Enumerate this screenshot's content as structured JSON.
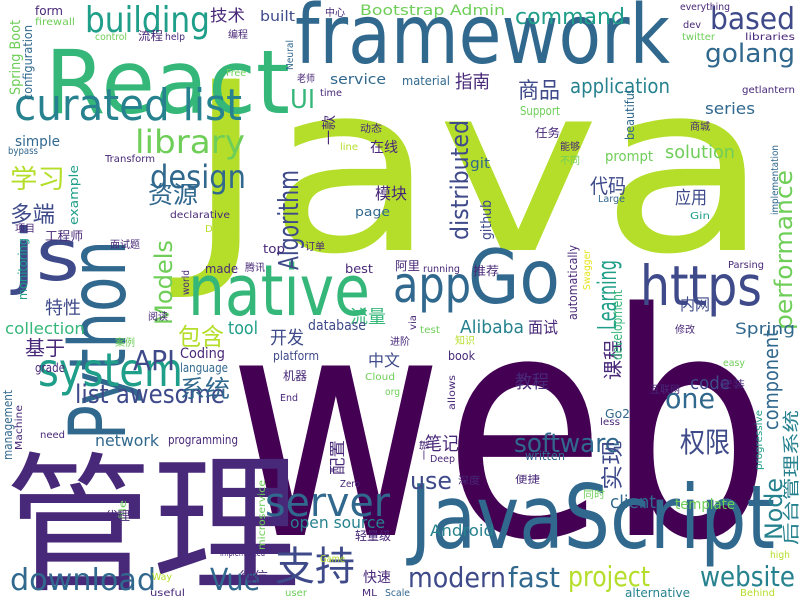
{
  "words": [
    "Java",
    "web",
    "管理",
    "framework",
    "React",
    "JavaScript",
    "Python",
    "native",
    "Go",
    "js",
    "curated list",
    "system",
    "https",
    "app",
    "server",
    "building",
    "based",
    "golang",
    "design",
    "library",
    "download",
    "Vue",
    "支持",
    "modern",
    "fast",
    "project",
    "website",
    "software",
    "权限",
    "list awesome",
    "API",
    "系统",
    "资源",
    "学习",
    "多端",
    "Algorithm",
    "UI",
    "Models",
    "performance",
    "distributed",
    "Learning",
    "Node",
    "后台管理系统",
    "实现",
    "课程",
    "component",
    "command",
    "application",
    "series",
    "商品",
    "指南",
    "solution",
    "代码",
    "应用",
    "one",
    "code",
    "Spring",
    "内网",
    "Alibaba",
    "面试",
    "流量",
    "tool",
    "包含",
    "特性",
    "collection",
    "基于",
    "开发",
    "database",
    "中文",
    "教程",
    "笔记",
    "use",
    "Android",
    "client",
    "template",
    "open source",
    "network",
    "programming",
    "Bootstrap Admin",
    "技术",
    "built",
    "service",
    "material",
    "Coding",
    "language",
    "platform",
    "机器",
    "made",
    "best",
    "top",
    "page",
    "模块",
    "在线",
    "git",
    "github",
    "推荐",
    "prompt",
    "beautiful",
    "Large",
    "Gin",
    "Parsing",
    "getlantern",
    "libraries",
    "twitter",
    "dev",
    "everything",
    "中心",
    "firewall",
    "form",
    "control",
    "流程",
    "help",
    "编程",
    "Free",
    "Neural",
    "老师",
    "time",
    "Spring Boot",
    "configuration",
    "simple",
    "bypass",
    "Transform",
    "example",
    "项目",
    "工程师",
    "monitoring",
    "面试题",
    "declarative",
    "Day",
    "腾讯",
    "world",
    "订单",
    "阿里",
    "running",
    "Support",
    "动态",
    "line",
    "一款",
    "任务",
    "能够",
    "不同",
    "商城",
    "implementation",
    "automatically",
    "Swagger",
    "development",
    "via",
    "test",
    "进阶",
    "知识",
    "book",
    "Cloud",
    "org",
    "allows",
    "less",
    "written",
    "Deep",
    "深度",
    "便捷",
    "同时",
    "Go2",
    "互联网",
    "安装",
    "easy",
    "修改",
    "progressive",
    "high",
    "Behind",
    "alternative",
    "Scale",
    "ML",
    "user",
    "快速",
    "微信",
    "useful",
    "Way",
    "轻量级",
    "microservice",
    "implemented",
    "Game",
    "file",
    "代理",
    "de",
    "need",
    "Machine",
    "management",
    "grade",
    "案例",
    "阅读",
    "End",
    "配置",
    "Zero",
    "一键"
  ]
}
